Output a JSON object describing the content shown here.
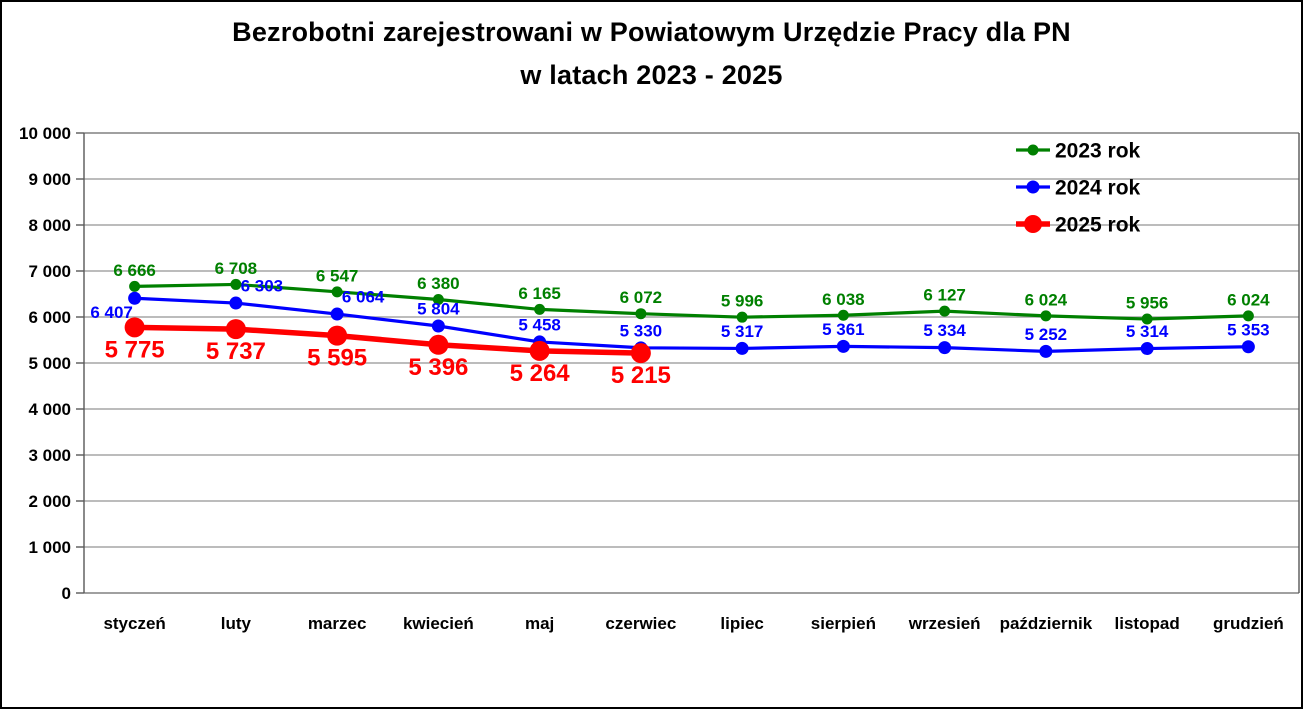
{
  "title": {
    "line1": "Bezrobotni zarejestrowani w Powiatowym Urzędzie Pracy dla PN",
    "line2": "w latach 2023 - 2025"
  },
  "chart_data": {
    "type": "line",
    "title": "Bezrobotni zarejestrowani w Powiatowym Urzędzie Pracy dla PN w latach 2023 - 2025",
    "categories": [
      "styczeń",
      "luty",
      "marzec",
      "kwiecień",
      "maj",
      "czerwiec",
      "lipiec",
      "sierpień",
      "wrzesień",
      "październik",
      "listopad",
      "grudzień"
    ],
    "series": [
      {
        "name": "2023 rok",
        "color": "#008000",
        "values": [
          6666,
          6708,
          6547,
          6380,
          6165,
          6072,
          5996,
          6038,
          6127,
          6024,
          5956,
          6024
        ]
      },
      {
        "name": "2024 rok",
        "color": "#0000FF",
        "values": [
          6407,
          6303,
          6064,
          5804,
          5458,
          5330,
          5317,
          5361,
          5334,
          5252,
          5314,
          5353
        ]
      },
      {
        "name": "2025 rok",
        "color": "#FF0000",
        "values": [
          5775,
          5737,
          5595,
          5396,
          5264,
          5215
        ]
      }
    ],
    "xlabel": "",
    "ylabel": "",
    "ylim": [
      0,
      10000
    ],
    "ytick_step": 1000,
    "grid": true,
    "legend_position": "top-right",
    "number_format": "space-thousands",
    "data_labels": true
  },
  "colors": {
    "series_2023": "#008000",
    "series_2024": "#0000FF",
    "series_2025": "#FF0000",
    "gridline": "#a6a6a6",
    "axis": "#595959",
    "text": "#000000",
    "background": "#ffffff"
  }
}
